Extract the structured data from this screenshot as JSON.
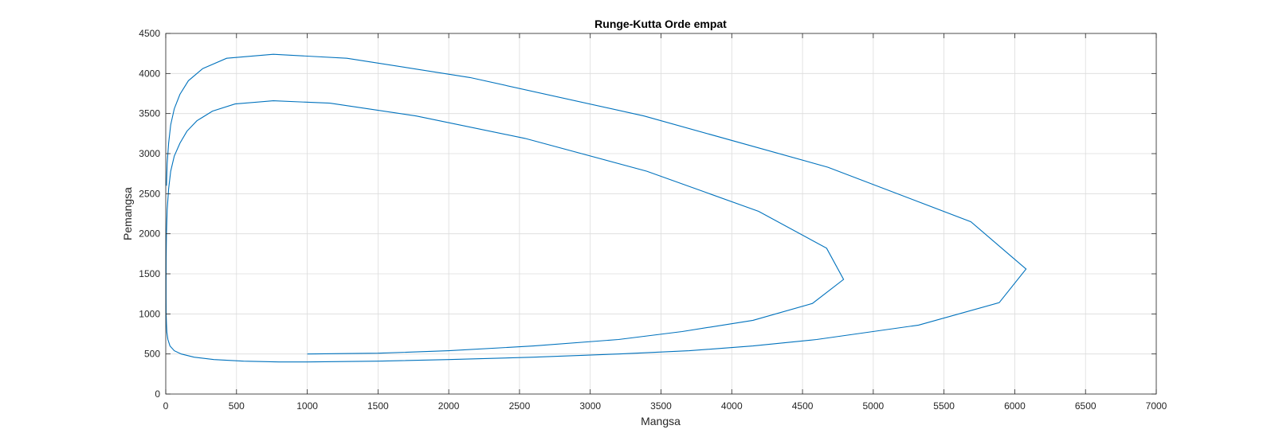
{
  "chart_data": {
    "type": "line",
    "title": "Runge-Kutta Orde empat",
    "xlabel": "Mangsa",
    "ylabel": "Pemangsa",
    "xlim": [
      0,
      7000
    ],
    "ylim": [
      0,
      4500
    ],
    "xticks": [
      0,
      500,
      1000,
      1500,
      2000,
      2500,
      3000,
      3500,
      4000,
      4500,
      5000,
      5500,
      6000,
      6500,
      7000
    ],
    "yticks": [
      0,
      500,
      1000,
      1500,
      2000,
      2500,
      3000,
      3500,
      4000,
      4500
    ],
    "xtick_labels": [
      "0",
      "500",
      "1000",
      "1500",
      "2000",
      "2500",
      "3000",
      "3500",
      "4000",
      "4500",
      "5000",
      "5500",
      "6000",
      "6500",
      "7000"
    ],
    "ytick_labels": [
      "0",
      "500",
      "1000",
      "1500",
      "2000",
      "2500",
      "3000",
      "3500",
      "4000",
      "4500"
    ],
    "grid": true,
    "line_color": "#0072BD",
    "series": [
      {
        "x": [
          1000,
          1500,
          2000,
          2600,
          3200,
          3650,
          4150,
          4570,
          4790,
          4670,
          4190,
          3400,
          2540,
          1770,
          1160,
          760,
          490,
          330,
          220,
          150,
          100,
          60,
          35,
          20,
          10,
          5,
          3,
          2,
          2,
          3,
          5,
          8,
          15,
          30,
          60,
          110,
          200,
          340,
          550,
          800,
          1000,
          1500,
          2000,
          2600,
          3200,
          3700,
          4150,
          4600,
          5320,
          5890,
          6080,
          5690,
          4680,
          3380,
          2150,
          1280,
          760,
          430,
          260,
          160,
          100,
          60,
          35,
          20,
          10,
          5
        ],
        "y": [
          500,
          510,
          540,
          600,
          680,
          780,
          920,
          1130,
          1430,
          1820,
          2280,
          2780,
          3190,
          3470,
          3630,
          3660,
          3620,
          3530,
          3410,
          3280,
          3130,
          2970,
          2780,
          2560,
          2300,
          2000,
          1700,
          1400,
          1200,
          1000,
          880,
          770,
          680,
          600,
          540,
          500,
          460,
          430,
          410,
          400,
          400,
          410,
          430,
          460,
          500,
          540,
          600,
          680,
          860,
          1140,
          1560,
          2150,
          2830,
          3470,
          3950,
          4190,
          4240,
          4190,
          4060,
          3910,
          3740,
          3560,
          3360,
          3130,
          2880,
          2600
        ]
      }
    ]
  }
}
